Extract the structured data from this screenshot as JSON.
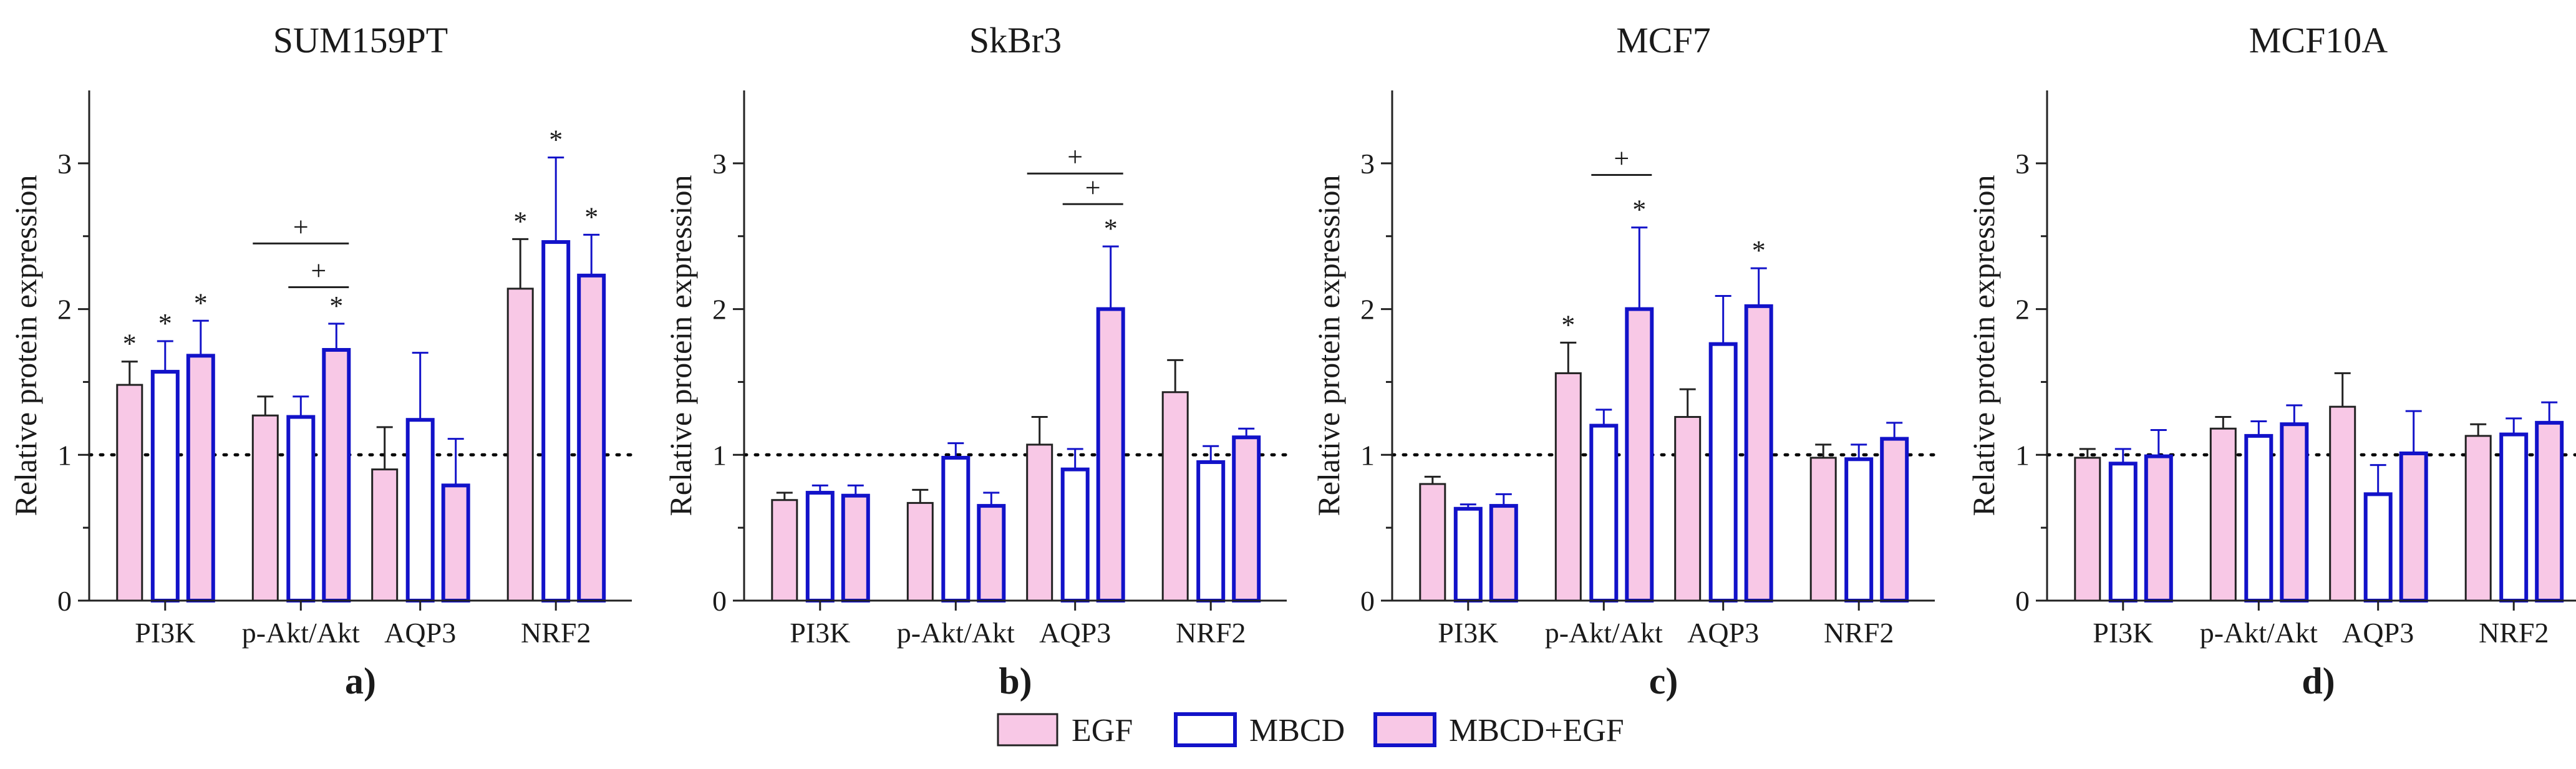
{
  "chart_data": {
    "type": "bar",
    "legend": {
      "position": "bottom-center",
      "entries": [
        {
          "name": "EGF",
          "fill": "#f8c8e6",
          "stroke": "#222222"
        },
        {
          "name": "MBCD",
          "fill": "#ffffff",
          "stroke": "#1212c9"
        },
        {
          "name": "MBCD+EGF",
          "fill": "#f8c8e6",
          "stroke": "#1212c9"
        }
      ]
    },
    "reference_line": 1,
    "panels": [
      {
        "title": "SUM159PT",
        "label": "a)",
        "ylabel": "Relative protein expression",
        "ylim": [
          0,
          3.5
        ],
        "yticks": [
          0,
          1,
          2,
          3
        ],
        "categories": [
          "PI3K",
          "p-Akt/Akt",
          "AQP3",
          "NRF2"
        ],
        "series": [
          {
            "name": "EGF",
            "values": [
              1.48,
              1.27,
              0.9,
              2.14
            ],
            "errors": [
              0.16,
              0.13,
              0.29,
              0.34
            ]
          },
          {
            "name": "MBCD",
            "values": [
              1.57,
              1.26,
              1.24,
              2.46
            ],
            "errors": [
              0.21,
              0.14,
              0.46,
              0.58
            ]
          },
          {
            "name": "MBCD+EGF",
            "values": [
              1.68,
              1.72,
              0.79,
              2.23
            ],
            "errors": [
              0.24,
              0.18,
              0.32,
              0.28
            ]
          }
        ],
        "stars": [
          {
            "cat": 0,
            "series": 0,
            "text": "*"
          },
          {
            "cat": 0,
            "series": 1,
            "text": "*"
          },
          {
            "cat": 0,
            "series": 2,
            "text": "*"
          },
          {
            "cat": 1,
            "series": 2,
            "text": "*"
          },
          {
            "cat": 3,
            "series": 0,
            "text": "*"
          },
          {
            "cat": 3,
            "series": 1,
            "text": "*"
          },
          {
            "cat": 3,
            "series": 2,
            "text": "*"
          }
        ],
        "brackets": [
          {
            "cat": 1,
            "from": 0,
            "to": 2,
            "y": 2.45,
            "text": "+"
          },
          {
            "cat": 1,
            "from": 1,
            "to": 2,
            "y": 2.15,
            "text": "+"
          }
        ]
      },
      {
        "title": "SkBr3",
        "label": "b)",
        "ylabel": "Relative protein expression",
        "ylim": [
          0,
          3.5
        ],
        "yticks": [
          0,
          1,
          2,
          3
        ],
        "categories": [
          "PI3K",
          "p-Akt/Akt",
          "AQP3",
          "NRF2"
        ],
        "series": [
          {
            "name": "EGF",
            "values": [
              0.69,
              0.67,
              1.07,
              1.43
            ],
            "errors": [
              0.05,
              0.09,
              0.19,
              0.22
            ]
          },
          {
            "name": "MBCD",
            "values": [
              0.74,
              0.98,
              0.9,
              0.95
            ],
            "errors": [
              0.05,
              0.1,
              0.14,
              0.11
            ]
          },
          {
            "name": "MBCD+EGF",
            "values": [
              0.72,
              0.65,
              2.0,
              1.12
            ],
            "errors": [
              0.07,
              0.09,
              0.43,
              0.06
            ]
          }
        ],
        "stars": [
          {
            "cat": 2,
            "series": 2,
            "text": "*"
          }
        ],
        "brackets": [
          {
            "cat": 2,
            "from": 0,
            "to": 2,
            "y": 2.93,
            "text": "+"
          },
          {
            "cat": 2,
            "from": 1,
            "to": 2,
            "y": 2.72,
            "text": "+"
          }
        ]
      },
      {
        "title": "MCF7",
        "label": "c)",
        "ylabel": "Relative protein expression",
        "ylim": [
          0,
          3.5
        ],
        "yticks": [
          0,
          1,
          2,
          3
        ],
        "categories": [
          "PI3K",
          "p-Akt/Akt",
          "AQP3",
          "NRF2"
        ],
        "series": [
          {
            "name": "EGF",
            "values": [
              0.8,
              1.56,
              1.26,
              0.98
            ],
            "errors": [
              0.05,
              0.21,
              0.19,
              0.09
            ]
          },
          {
            "name": "MBCD",
            "values": [
              0.63,
              1.2,
              1.76,
              0.97
            ],
            "errors": [
              0.03,
              0.11,
              0.33,
              0.1
            ]
          },
          {
            "name": "MBCD+EGF",
            "values": [
              0.65,
              2.0,
              2.02,
              1.11
            ],
            "errors": [
              0.08,
              0.56,
              0.26,
              0.11
            ]
          }
        ],
        "stars": [
          {
            "cat": 1,
            "series": 0,
            "text": "*"
          },
          {
            "cat": 1,
            "series": 2,
            "text": "*"
          },
          {
            "cat": 2,
            "series": 2,
            "text": "*"
          }
        ],
        "brackets": [
          {
            "cat": 1,
            "from": 1,
            "to": 2,
            "y": 2.92,
            "text": "+"
          }
        ]
      },
      {
        "title": "MCF10A",
        "label": "d)",
        "ylabel": "Relative protein expression",
        "ylim": [
          0,
          3.5
        ],
        "yticks": [
          0,
          1,
          2,
          3
        ],
        "categories": [
          "PI3K",
          "p-Akt/Akt",
          "AQP3",
          "NRF2"
        ],
        "series": [
          {
            "name": "EGF",
            "values": [
              0.98,
              1.18,
              1.33,
              1.13
            ],
            "errors": [
              0.06,
              0.08,
              0.23,
              0.08
            ]
          },
          {
            "name": "MBCD",
            "values": [
              0.94,
              1.13,
              0.73,
              1.14
            ],
            "errors": [
              0.1,
              0.1,
              0.2,
              0.11
            ]
          },
          {
            "name": "MBCD+EGF",
            "values": [
              0.99,
              1.21,
              1.01,
              1.22
            ],
            "errors": [
              0.18,
              0.13,
              0.29,
              0.14
            ]
          }
        ],
        "stars": [],
        "brackets": []
      }
    ]
  }
}
